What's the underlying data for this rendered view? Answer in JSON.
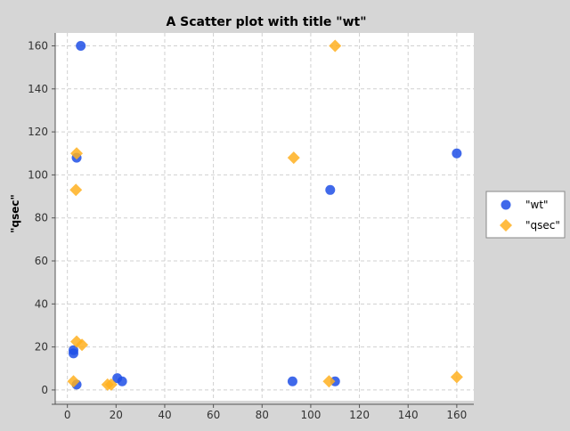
{
  "chart_data": {
    "type": "scatter",
    "title": "A Scatter plot with title \"wt\"",
    "xlabel": "",
    "ylabel": "\"qsec\"",
    "xlim": [
      -5,
      167
    ],
    "ylim": [
      -5,
      166
    ],
    "xticks": [
      0,
      20,
      40,
      60,
      80,
      100,
      120,
      140,
      160
    ],
    "yticks": [
      0,
      20,
      40,
      60,
      80,
      100,
      120,
      140,
      160
    ],
    "grid": true,
    "legend_position": "right",
    "series": [
      {
        "name": "\"wt\"",
        "marker": "circle",
        "color": "#1f4fe6",
        "points": [
          [
            5.5,
            160
          ],
          [
            3.8,
            108
          ],
          [
            2.5,
            18.5
          ],
          [
            2.5,
            17.0
          ],
          [
            3.8,
            2.5
          ],
          [
            20.5,
            5.5
          ],
          [
            22.5,
            4.0
          ],
          [
            92.5,
            4.0
          ],
          [
            108,
            93
          ],
          [
            110,
            4.0
          ],
          [
            160,
            110
          ]
        ]
      },
      {
        "name": "\"qsec\"",
        "marker": "diamond",
        "color": "#ffb020",
        "points": [
          [
            110,
            160
          ],
          [
            3.8,
            110
          ],
          [
            3.5,
            93
          ],
          [
            93,
            108
          ],
          [
            3.8,
            22.5
          ],
          [
            6.0,
            21.0
          ],
          [
            2.5,
            4.0
          ],
          [
            16.5,
            2.5
          ],
          [
            18,
            2.5
          ],
          [
            107.5,
            4.0
          ],
          [
            160,
            6.0
          ]
        ]
      }
    ]
  }
}
